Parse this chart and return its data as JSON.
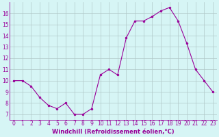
{
  "x": [
    0,
    1,
    2,
    3,
    4,
    5,
    6,
    7,
    8,
    9,
    10,
    11,
    12,
    13,
    14,
    15,
    16,
    17,
    18,
    19,
    20,
    21,
    22,
    23
  ],
  "y": [
    10,
    10,
    9.5,
    8.5,
    7.8,
    7.5,
    8.0,
    7.0,
    7.0,
    7.5,
    10.5,
    11.0,
    10.5,
    13.8,
    15.3,
    15.3,
    15.7,
    16.2,
    16.5,
    15.3,
    13.3,
    11.0,
    10.0,
    9.0
  ],
  "line_color": "#990099",
  "marker": "o",
  "marker_size": 2,
  "bg_color": "#d6f5f5",
  "grid_color": "#b0c8c8",
  "xlabel": "Windchill (Refroidissement éolien,°C)",
  "xlim": [
    -0.5,
    23.5
  ],
  "ylim": [
    6.5,
    17.0
  ],
  "yticks": [
    7,
    8,
    9,
    10,
    11,
    12,
    13,
    14,
    15,
    16
  ],
  "xticks": [
    0,
    1,
    2,
    3,
    4,
    5,
    6,
    7,
    8,
    9,
    10,
    11,
    12,
    13,
    14,
    15,
    16,
    17,
    18,
    19,
    20,
    21,
    22,
    23
  ],
  "label_fontsize": 6.0,
  "tick_fontsize": 5.5
}
